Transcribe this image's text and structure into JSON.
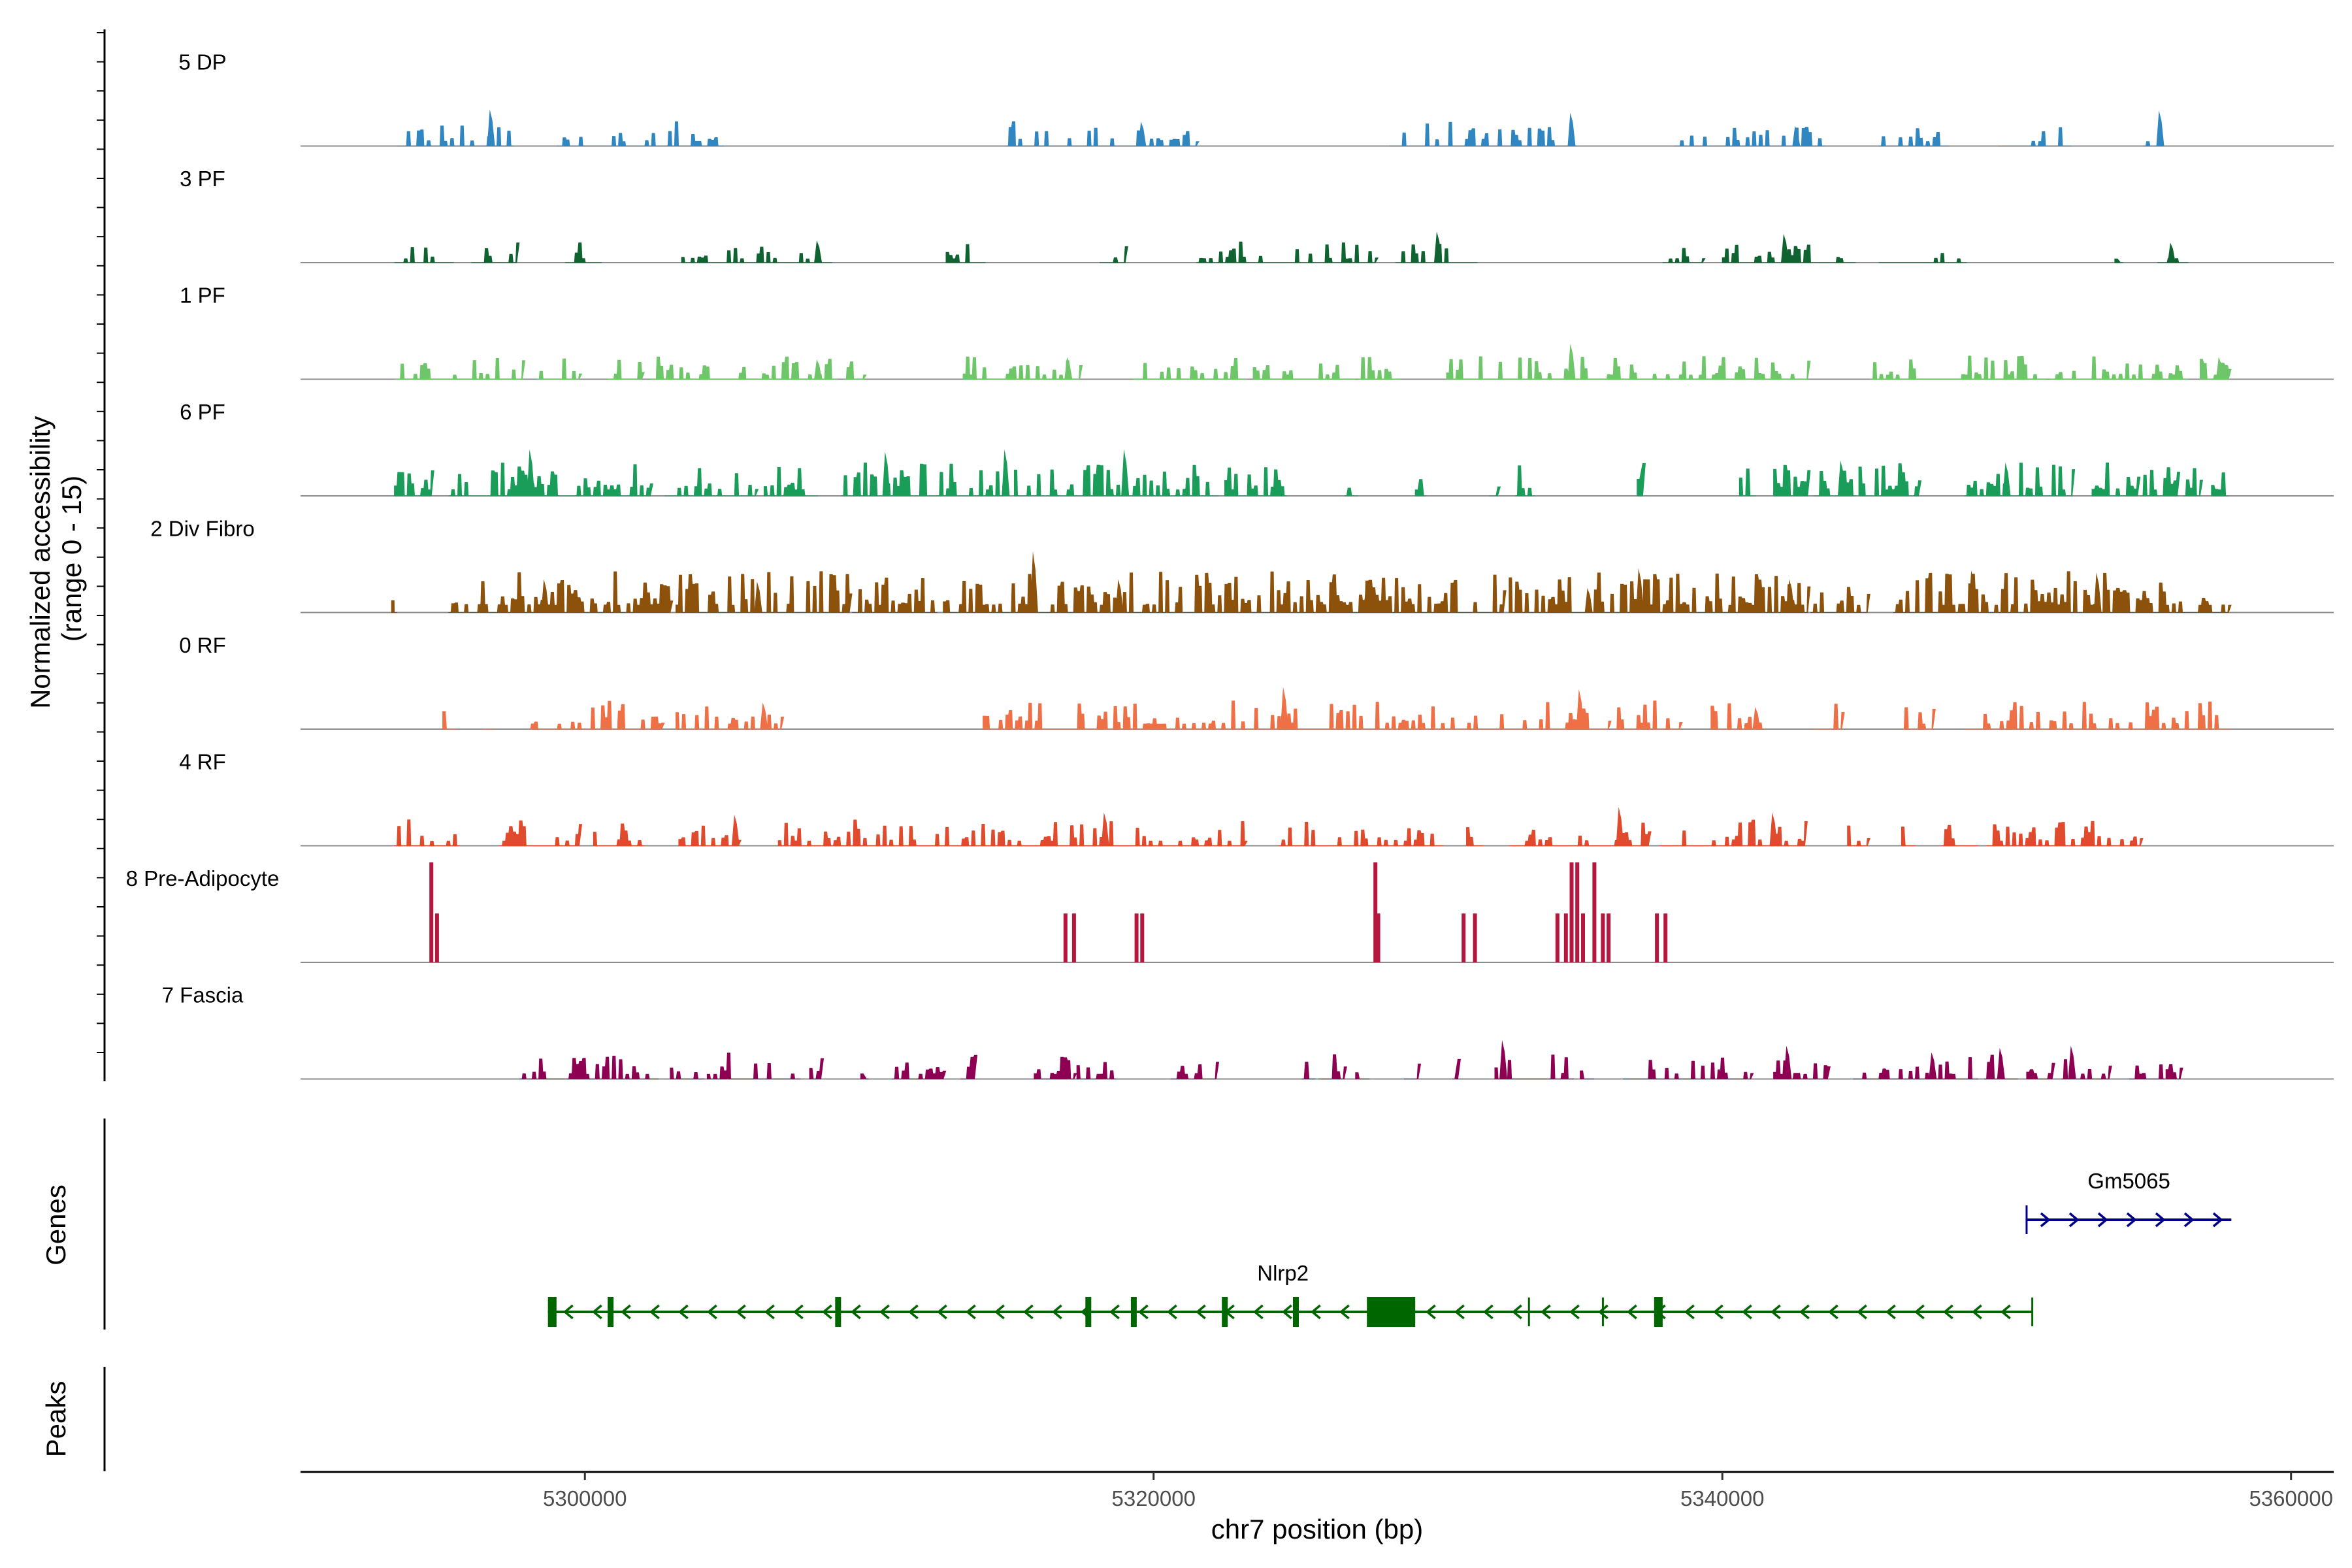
{
  "chart_data": {
    "type": "area",
    "title": "",
    "chromosome": "chr7",
    "xlabel": "chr7 position (bp)",
    "ylabel": "Normalized accessibility\n(range 0 - 15)",
    "ylabel_line1": "Normalized accessibility",
    "ylabel_line2": "(range 0 - 15)",
    "ylim": [
      0,
      15
    ],
    "xlim": [
      5290000,
      5361500
    ],
    "x_ticks": [
      5300000,
      5320000,
      5340000,
      5360000
    ],
    "x_tick_labels": [
      "5300000",
      "5320000",
      "5340000",
      "5360000"
    ],
    "tracks": [
      {
        "name": "5 DP",
        "color": "#2f86c0",
        "dense": 0.32,
        "max": 0.33,
        "regions": [
          [
            5293400,
            5297400
          ],
          [
            5299000,
            5304800
          ],
          [
            5314800,
            5321500
          ],
          [
            5328300,
            5334800
          ],
          [
            5338300,
            5343500
          ],
          [
            5345500,
            5347900
          ],
          [
            5349700,
            5352200
          ],
          [
            5354800,
            5355400
          ]
        ],
        "peaks": [
          [
            5296700,
            0.33
          ],
          [
            5319600,
            0.22
          ],
          [
            5334700,
            0.3
          ],
          [
            5342600,
            0.18
          ],
          [
            5355400,
            0.32
          ]
        ]
      },
      {
        "name": "3 PF",
        "color": "#0e6331",
        "dense": 0.28,
        "max": 0.28,
        "regions": [
          [
            5293300,
            5295300
          ],
          [
            5296000,
            5297600
          ],
          [
            5299300,
            5300500
          ],
          [
            5303400,
            5308600
          ],
          [
            5312700,
            5314000
          ],
          [
            5318100,
            5319000
          ],
          [
            5321500,
            5327800
          ],
          [
            5328500,
            5331300
          ],
          [
            5337900,
            5339300
          ],
          [
            5340000,
            5344600
          ],
          [
            5345500,
            5348500
          ],
          [
            5353800,
            5354000
          ],
          [
            5355300,
            5356300
          ]
        ],
        "peaks": [
          [
            5308200,
            0.2
          ],
          [
            5330000,
            0.28
          ],
          [
            5342200,
            0.26
          ],
          [
            5355800,
            0.18
          ]
        ]
      },
      {
        "name": "1 PF",
        "color": "#6fc66a",
        "dense": 0.4,
        "max": 0.32,
        "regions": [
          [
            5293300,
            5297800
          ],
          [
            5298300,
            5299800
          ],
          [
            5300800,
            5302000
          ],
          [
            5302300,
            5308800
          ],
          [
            5309100,
            5309800
          ],
          [
            5313300,
            5317400
          ],
          [
            5319300,
            5323200
          ],
          [
            5323500,
            5327000
          ],
          [
            5327200,
            5328600
          ],
          [
            5330300,
            5343000
          ],
          [
            5345200,
            5351300
          ],
          [
            5351500,
            5356300
          ],
          [
            5356800,
            5357800
          ]
        ],
        "peaks": [
          [
            5308200,
            0.18
          ],
          [
            5317000,
            0.2
          ],
          [
            5334700,
            0.32
          ],
          [
            5357500,
            0.2
          ]
        ]
      },
      {
        "name": "6 PF",
        "color": "#1b9d5a",
        "dense": 0.55,
        "max": 0.45,
        "regions": [
          [
            5293300,
            5294600
          ],
          [
            5295200,
            5302300
          ],
          [
            5302800,
            5306000
          ],
          [
            5306300,
            5308100
          ],
          [
            5309000,
            5314700
          ],
          [
            5315100,
            5322200
          ],
          [
            5322500,
            5324600
          ],
          [
            5326700,
            5327100
          ],
          [
            5329200,
            5329500
          ],
          [
            5331800,
            5332100
          ],
          [
            5332700,
            5333300
          ],
          [
            5337000,
            5337200
          ],
          [
            5340600,
            5341100
          ],
          [
            5341800,
            5343000
          ],
          [
            5343200,
            5344600
          ],
          [
            5344800,
            5346900
          ],
          [
            5348500,
            5352300
          ],
          [
            5353000,
            5354600
          ],
          [
            5354700,
            5356000
          ],
          [
            5356200,
            5356800
          ],
          [
            5357200,
            5357700
          ]
        ],
        "peaks": [
          [
            5298100,
            0.42
          ],
          [
            5310600,
            0.4
          ],
          [
            5314800,
            0.42
          ],
          [
            5319000,
            0.42
          ],
          [
            5344200,
            0.32
          ],
          [
            5350000,
            0.3
          ]
        ]
      },
      {
        "name": "2 Div Fibro",
        "color": "#8c510a",
        "dense": 0.55,
        "max": 0.55,
        "regions": [
          [
            5293200,
            5293300
          ],
          [
            5295200,
            5303000
          ],
          [
            5303200,
            5309300
          ],
          [
            5309400,
            5312300
          ],
          [
            5312600,
            5332300
          ],
          [
            5332500,
            5343000
          ],
          [
            5343100,
            5345100
          ],
          [
            5346000,
            5357800
          ]
        ],
        "peaks": [
          [
            5298600,
            0.3
          ],
          [
            5306100,
            0.28
          ],
          [
            5315800,
            0.55
          ],
          [
            5318800,
            0.3
          ],
          [
            5327500,
            0.2
          ],
          [
            5335300,
            0.22
          ],
          [
            5337100,
            0.4
          ],
          [
            5342400,
            0.3
          ],
          [
            5348800,
            0.38
          ],
          [
            5353200,
            0.36
          ]
        ]
      },
      {
        "name": "0 RF",
        "color": "#ef6f46",
        "dense": 0.4,
        "max": 0.38,
        "regions": [
          [
            5295000,
            5295400
          ],
          [
            5296400,
            5296700
          ],
          [
            5298000,
            5302700
          ],
          [
            5303200,
            5306900
          ],
          [
            5314000,
            5336000
          ],
          [
            5336200,
            5338500
          ],
          [
            5339600,
            5341400
          ],
          [
            5343200,
            5344200
          ],
          [
            5346300,
            5347400
          ],
          [
            5348500,
            5357800
          ]
        ],
        "peaks": [
          [
            5306300,
            0.24
          ],
          [
            5324600,
            0.38
          ],
          [
            5335000,
            0.36
          ],
          [
            5341200,
            0.2
          ]
        ]
      },
      {
        "name": "4 RF",
        "color": "#e04b2d",
        "dense": 0.38,
        "max": 0.35,
        "regions": [
          [
            5293300,
            5295500
          ],
          [
            5297000,
            5299800
          ],
          [
            5300300,
            5302000
          ],
          [
            5303300,
            5305400
          ],
          [
            5306800,
            5323200
          ],
          [
            5324400,
            5330100
          ],
          [
            5331000,
            5331500
          ],
          [
            5332500,
            5337400
          ],
          [
            5337800,
            5342900
          ],
          [
            5344400,
            5345100
          ],
          [
            5346300,
            5346700
          ],
          [
            5347700,
            5348900
          ],
          [
            5349300,
            5354700
          ]
        ],
        "peaks": [
          [
            5305300,
            0.28
          ],
          [
            5318300,
            0.3
          ],
          [
            5336400,
            0.35
          ],
          [
            5341800,
            0.3
          ]
        ]
      },
      {
        "name": "8 Pre-Adipocyte",
        "color": "#b5173f",
        "dense": 0,
        "max": 0.9,
        "bars": [
          [
            5294600,
            0.9
          ],
          [
            5294800,
            0.44
          ],
          [
            5316900,
            0.44
          ],
          [
            5317200,
            0.44
          ],
          [
            5319400,
            0.44
          ],
          [
            5319600,
            0.44
          ],
          [
            5327800,
            0.9
          ],
          [
            5327900,
            0.44
          ],
          [
            5330900,
            0.44
          ],
          [
            5331300,
            0.44
          ],
          [
            5334200,
            0.44
          ],
          [
            5334500,
            0.44
          ],
          [
            5334700,
            0.9
          ],
          [
            5334900,
            0.9
          ],
          [
            5335100,
            0.44
          ],
          [
            5335500,
            0.9
          ],
          [
            5335800,
            0.44
          ],
          [
            5336000,
            0.44
          ],
          [
            5337700,
            0.44
          ],
          [
            5338000,
            0.44
          ]
        ]
      },
      {
        "name": "7 Fascia",
        "color": "#8e0152",
        "dense": 0.42,
        "max": 0.35,
        "regions": [
          [
            5297700,
            5302500
          ],
          [
            5303000,
            5304100
          ],
          [
            5304300,
            5307500
          ],
          [
            5307900,
            5308300
          ],
          [
            5309700,
            5309900
          ],
          [
            5310800,
            5312600
          ],
          [
            5313200,
            5313700
          ],
          [
            5315800,
            5317200
          ],
          [
            5317300,
            5318600
          ],
          [
            5320600,
            5322200
          ],
          [
            5325200,
            5325600
          ],
          [
            5325800,
            5326700
          ],
          [
            5327100,
            5327500
          ],
          [
            5328800,
            5329300
          ],
          [
            5330500,
            5330700
          ],
          [
            5332000,
            5334700
          ],
          [
            5335000,
            5335400
          ],
          [
            5336500,
            5341000
          ],
          [
            5341800,
            5343700
          ],
          [
            5344600,
            5348900
          ],
          [
            5349200,
            5350300
          ],
          [
            5350700,
            5351600
          ],
          [
            5351900,
            5353600
          ],
          [
            5354300,
            5355500
          ],
          [
            5355600,
            5356100
          ]
        ],
        "peaks": [
          [
            5332300,
            0.35
          ],
          [
            5342300,
            0.3
          ],
          [
            5349800,
            0.28
          ],
          [
            5352300,
            0.3
          ],
          [
            5347400,
            0.24
          ]
        ]
      }
    ],
    "genes": [
      {
        "name": "Nlrp2",
        "strand": "-",
        "start": 5298700,
        "end": 5350900,
        "color": "#006600",
        "exons": [
          [
            5298700,
            5299000
          ],
          [
            5300800,
            5300950
          ],
          [
            5308800,
            5308900
          ],
          [
            5317600,
            5317700
          ],
          [
            5319200,
            5319280
          ],
          [
            5322400,
            5322500
          ],
          [
            5324900,
            5325000
          ],
          [
            5327500,
            5329200
          ],
          [
            5337600,
            5337900
          ]
        ],
        "ticks": [
          5333200,
          5335800,
          5350900
        ]
      },
      {
        "name": "Gm5065",
        "strand": "+",
        "start": 5350700,
        "end": 5357900,
        "color": "#00008b",
        "exons": [],
        "ticks": [
          5350700
        ]
      }
    ],
    "panels": [
      "Genes",
      "Peaks"
    ]
  }
}
